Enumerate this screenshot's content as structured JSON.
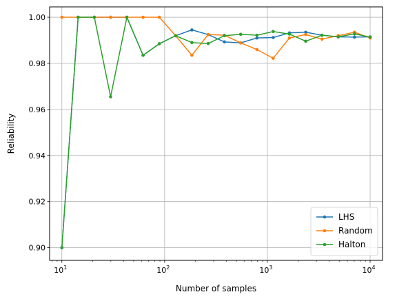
{
  "chart_data": {
    "type": "line",
    "title": "",
    "xlabel": "Number of samples",
    "ylabel": "Reliability",
    "xscale": "log",
    "xlim": [
      7.6,
      13200
    ],
    "ylim": [
      0.8945,
      1.0045
    ],
    "grid": true,
    "legend": "bottom-right",
    "x_ticks": [
      {
        "value": 10,
        "base": "10",
        "exp": "1"
      },
      {
        "value": 100,
        "base": "10",
        "exp": "2"
      },
      {
        "value": 1000,
        "base": "10",
        "exp": "3"
      },
      {
        "value": 10000,
        "base": "10",
        "exp": "4"
      }
    ],
    "y_ticks": [
      {
        "value": 0.9,
        "label": "0.90"
      },
      {
        "value": 0.92,
        "label": "0.92"
      },
      {
        "value": 0.94,
        "label": "0.94"
      },
      {
        "value": 0.96,
        "label": "0.96"
      },
      {
        "value": 0.98,
        "label": "0.98"
      },
      {
        "value": 1.0,
        "label": "1.00"
      }
    ],
    "x": [
      10,
      14.4,
      20.7,
      29.8,
      42.9,
      61.7,
      88.8,
      127.9,
      184.2,
      265.3,
      381.6,
      549.5,
      791.0,
      1138.8,
      1639.5,
      2360.5,
      3398.1,
      4892.3,
      7043.3,
      10000
    ],
    "series": [
      {
        "name": "LHS",
        "color": "#1f77b4",
        "values": [
          0.9,
          1.0,
          1.0,
          1.0,
          1.0,
          0.9835,
          0.9885,
          0.992,
          0.9945,
          0.9925,
          0.9893,
          0.9889,
          0.991,
          0.9912,
          0.9932,
          0.9935,
          0.9922,
          0.9915,
          0.9914,
          0.9915
        ]
      },
      {
        "name": "Random",
        "color": "#ff7f0e",
        "values": [
          1.0,
          1.0,
          1.0,
          1.0,
          1.0,
          1.0,
          1.0,
          0.992,
          0.9835,
          0.9925,
          0.9922,
          0.9889,
          0.986,
          0.9822,
          0.991,
          0.9925,
          0.9905,
          0.992,
          0.9935,
          0.991
        ]
      },
      {
        "name": "Halton",
        "color": "#2ca02c",
        "values": [
          0.9,
          1.0,
          1.0,
          0.9655,
          1.0,
          0.9835,
          0.9885,
          0.992,
          0.989,
          0.9886,
          0.992,
          0.9926,
          0.9922,
          0.9938,
          0.9927,
          0.9896,
          0.9922,
          0.9915,
          0.9928,
          0.9914
        ]
      }
    ]
  }
}
